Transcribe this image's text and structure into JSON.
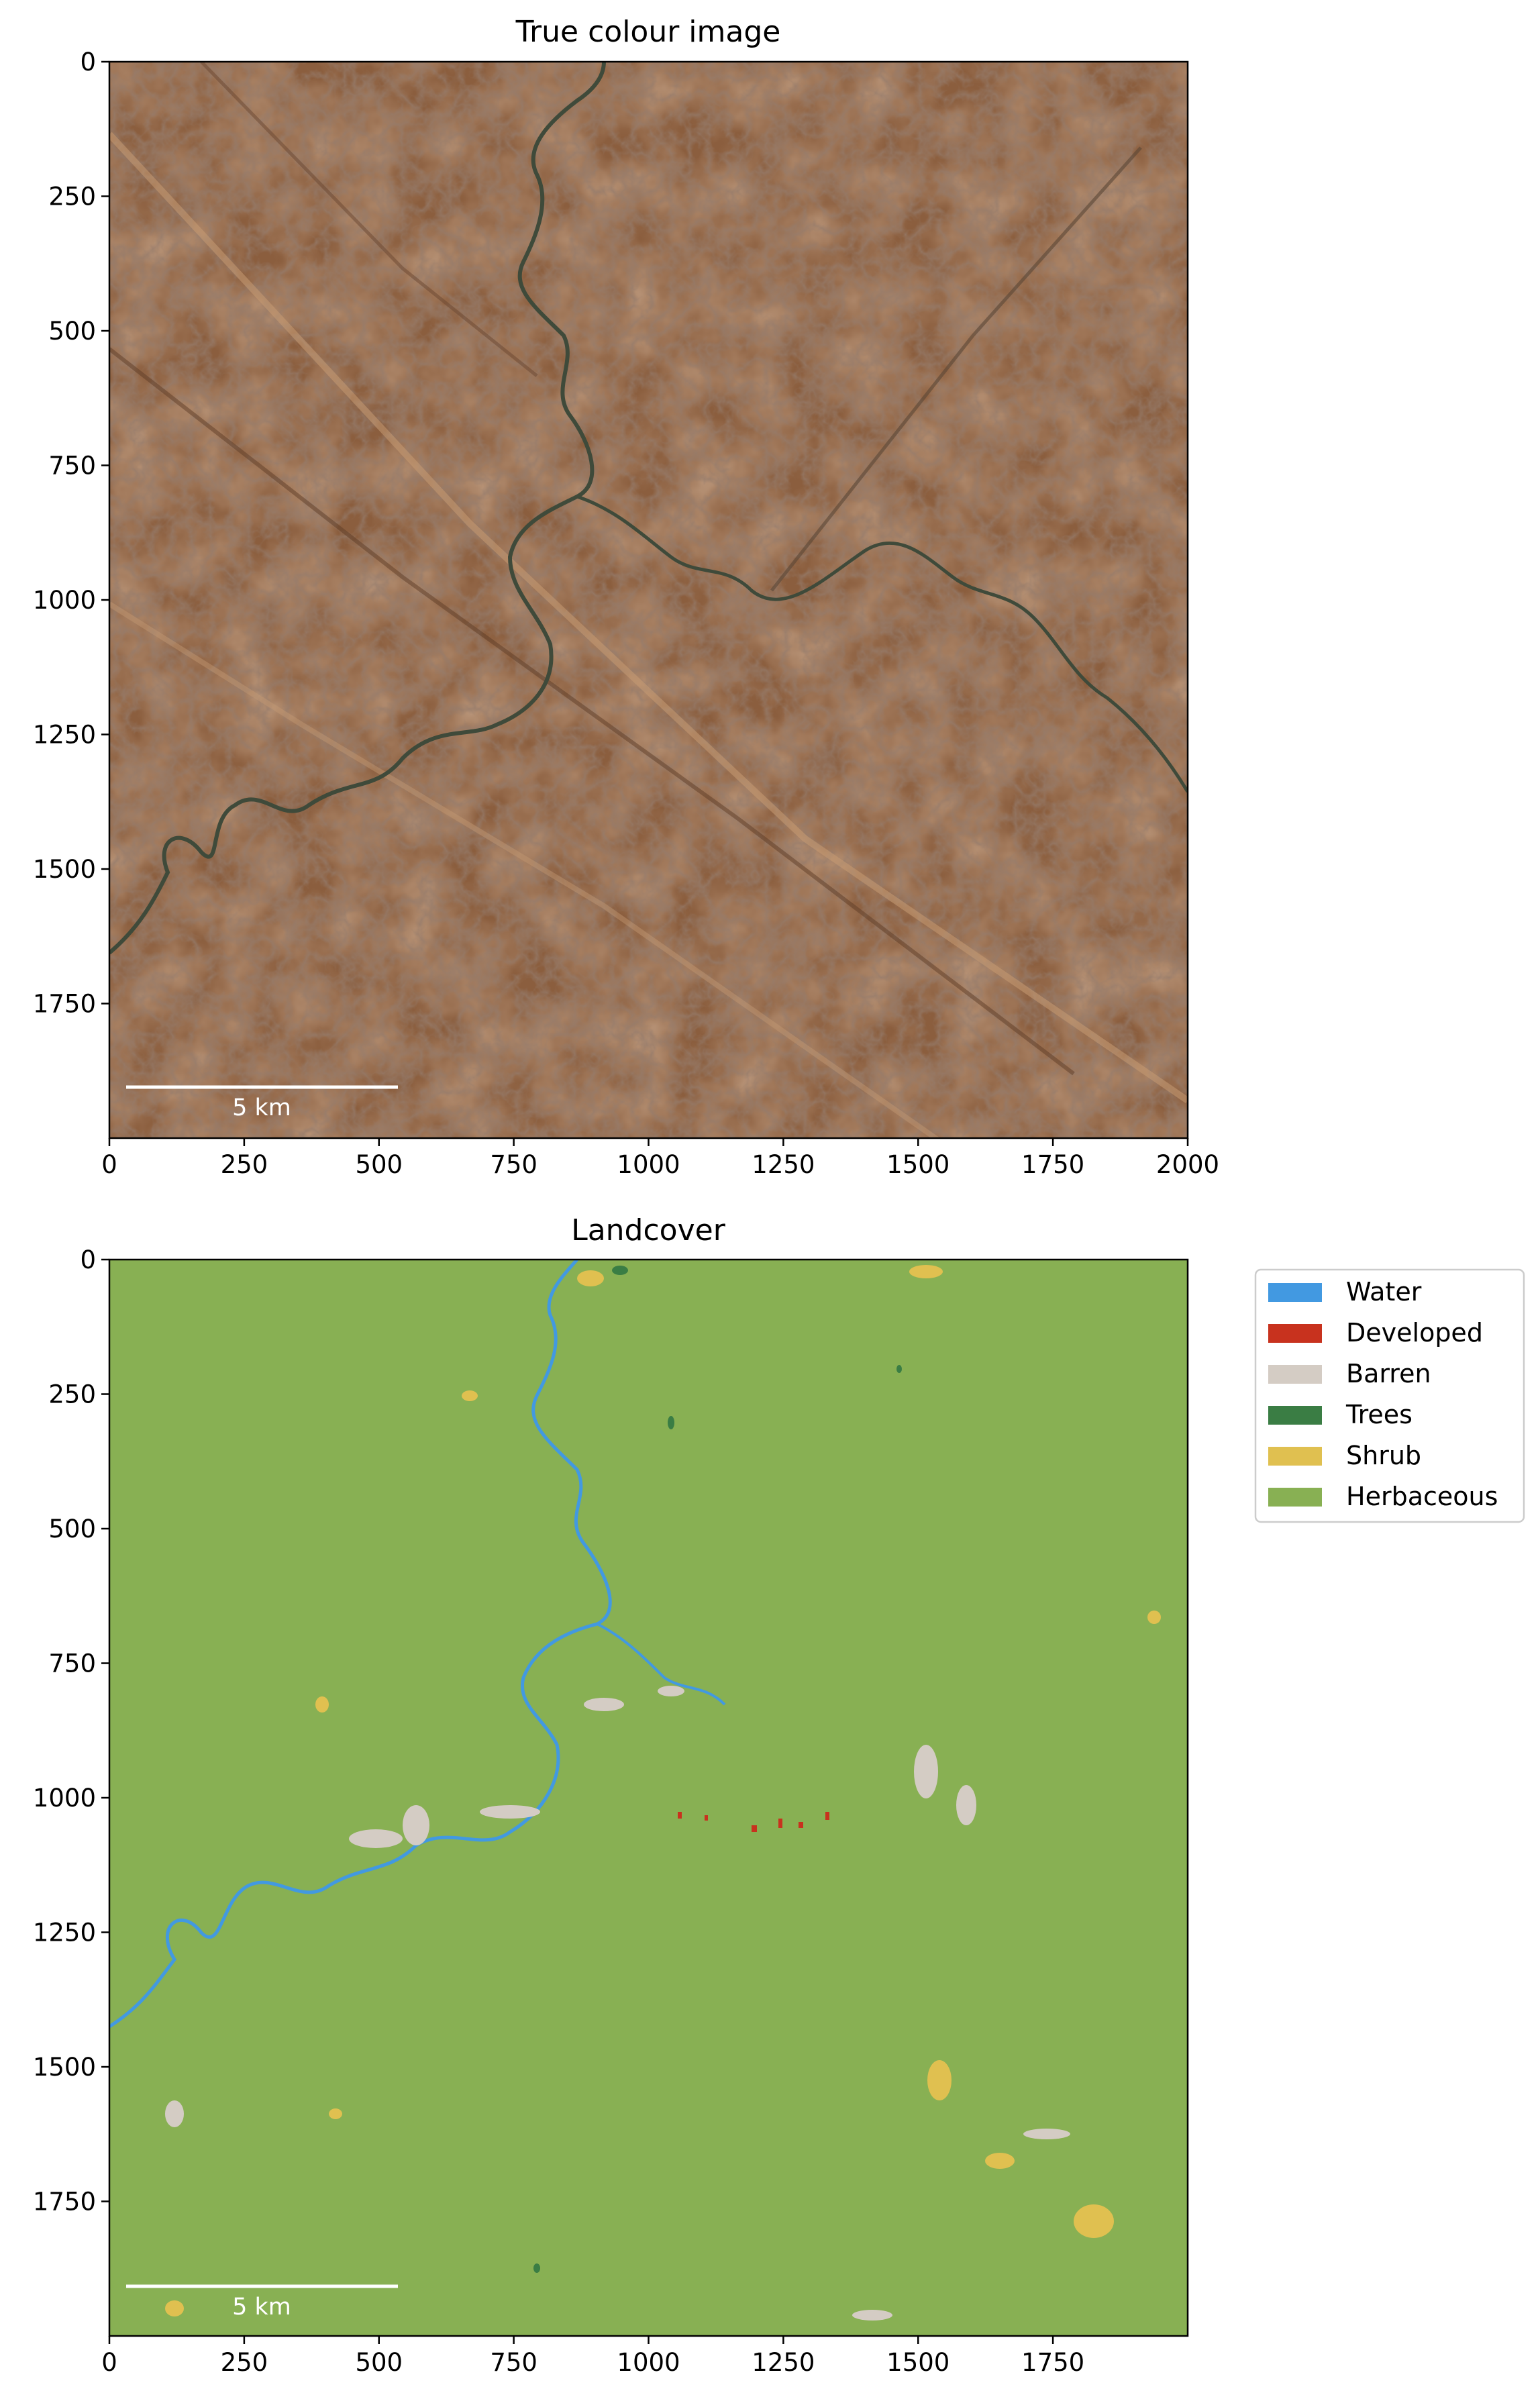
{
  "panels": [
    {
      "title": "True colour image",
      "xticks": [
        "0",
        "250",
        "500",
        "750",
        "1000",
        "1250",
        "1500",
        "1750",
        "2000"
      ],
      "yticks": [
        "0",
        "250",
        "500",
        "750",
        "1000",
        "1250",
        "1500",
        "1750"
      ],
      "scalebar_label": "5 km"
    },
    {
      "title": "Landcover",
      "xticks": [
        "0",
        "250",
        "500",
        "750",
        "1000",
        "1250",
        "1500",
        "1750"
      ],
      "yticks": [
        "0",
        "250",
        "500",
        "750",
        "1000",
        "1250",
        "1500",
        "1750"
      ],
      "scalebar_label": "5 km"
    }
  ],
  "legend": [
    {
      "label": "Water",
      "color": "#4299e1"
    },
    {
      "label": "Developed",
      "color": "#c8321e"
    },
    {
      "label": "Barren",
      "color": "#d4ccc4"
    },
    {
      "label": "Trees",
      "color": "#3a7d44"
    },
    {
      "label": "Shrub",
      "color": "#e0c050"
    },
    {
      "label": "Herbaceous",
      "color": "#88b053"
    }
  ],
  "colors": {
    "terrain": "#8b5e3e",
    "terrain_light": "#b08060",
    "river": "#3f4a3a"
  }
}
